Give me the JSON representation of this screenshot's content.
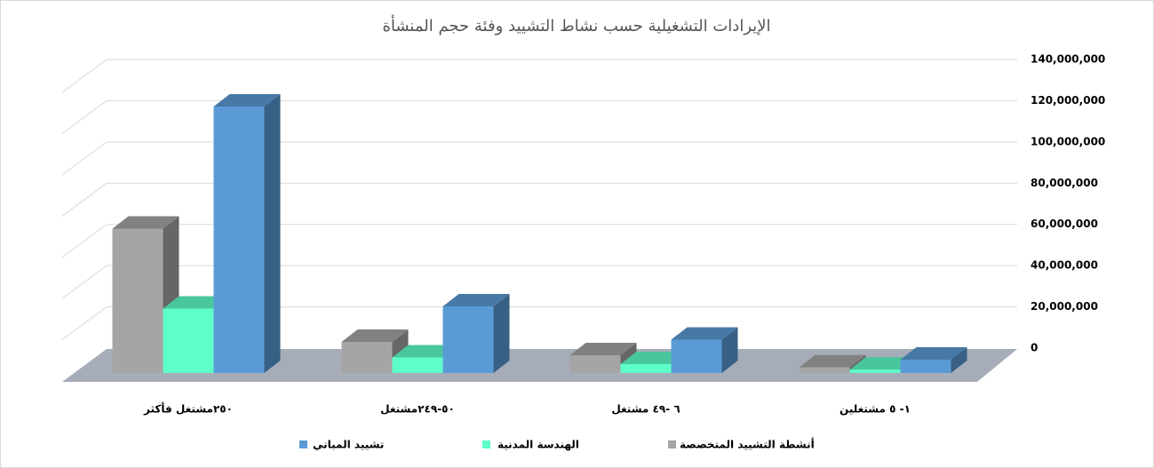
{
  "chart_data": {
    "type": "bar3d",
    "title": "الإيرادات التشغيلية حسب نشاط التشييد وفئة حجم المنشأة",
    "categories": [
      "٢٥٠مشتغل فأكثر",
      "٥٠-٢٤٩مشتغل",
      "٦ -٤٩ مشتغل",
      "١- ٥ مشتغلين"
    ],
    "series": [
      {
        "name": "أنشطة التشييد المتخصصة",
        "color": "#a5a5a5",
        "values": [
          65000000,
          14000000,
          8000000,
          2500000
        ]
      },
      {
        "name": "الهندسة المدنية",
        "color": "#5effc8",
        "values": [
          29000000,
          7000000,
          4000000,
          1500000
        ]
      },
      {
        "name": "تشييد المباني",
        "color": "#5b9bd5",
        "values": [
          120000000,
          30000000,
          15000000,
          6000000
        ]
      }
    ],
    "ylim": [
      0,
      140000000
    ],
    "yticks": [
      0,
      {
        "value": 20000000,
        "label": "20,000,000"
      },
      {
        "value": 40000000,
        "label": "40,000,000"
      },
      {
        "value": 60000000,
        "label": "60,000,000"
      },
      {
        "value": 80000000,
        "label": "80,000,000"
      },
      {
        "value": 100000000,
        "label": "100,000,000"
      },
      {
        "value": 120000000,
        "label": "120,000,000"
      },
      {
        "value": 140000000,
        "label": "140,000,000"
      }
    ],
    "grid": true
  }
}
